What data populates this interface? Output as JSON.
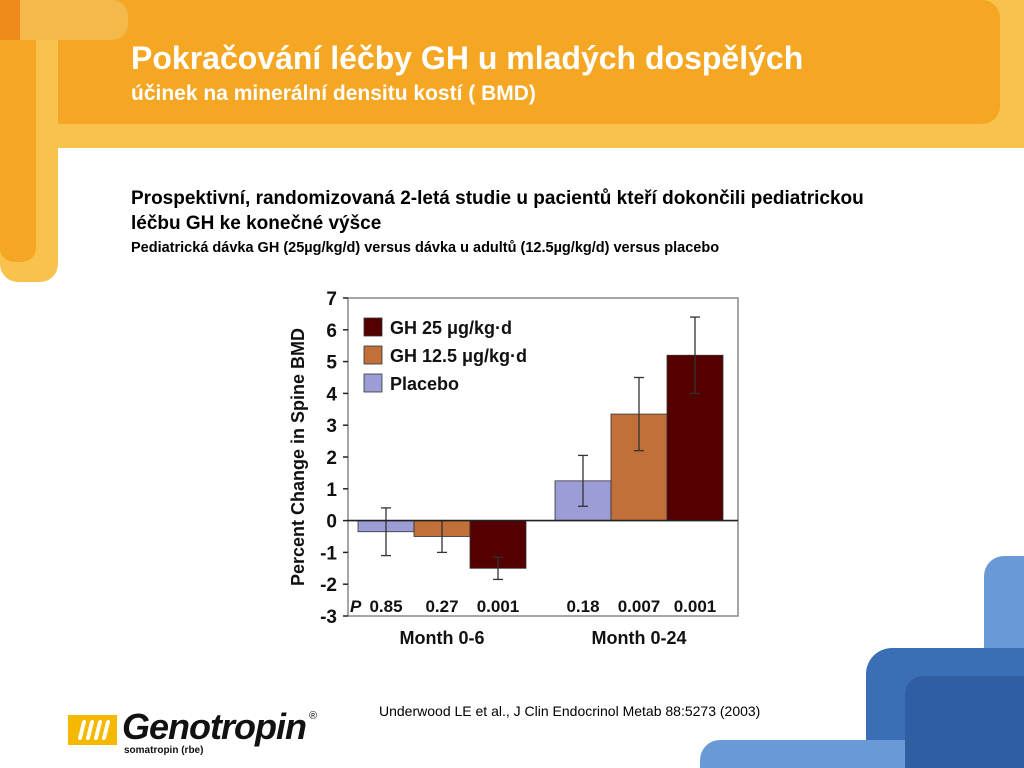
{
  "slide": {
    "title": "Pokračování léčby GH  u mladých dospělých",
    "subtitle": "účinek na minerální densitu kostí ( BMD)",
    "description": "Prospektivní, randomizovaná 2-letá studie u pacientů kteří dokončili pediatrickou léčbu GH ke konečné výšce",
    "doses": "Pediatrická dávka GH (25µg/kg/d) versus dávka u adultů (12.5µg/kg/d) versus placebo",
    "citation": "Underwood LE et al., J Clin Endocrinol Metab 88:5273 (2003)"
  },
  "logo": {
    "brand": "Genotropin",
    "registered": "®",
    "tagline": "somatropin (rbe)"
  },
  "colors": {
    "orange": "#f5a623",
    "orange_light": "#f9c24c",
    "blue": "#3a6fb5",
    "blue_light": "#6a9ad6",
    "gh25": "#550000",
    "gh12": "#c07038",
    "placebo": "#9c9cd6"
  },
  "chart_data": {
    "type": "bar",
    "ylabel": "Percent Change in Spine BMD",
    "ylim": [
      -3,
      7
    ],
    "yticks": [
      -3,
      -2,
      -1,
      0,
      1,
      2,
      3,
      4,
      5,
      6,
      7
    ],
    "categories": [
      "Month 0-6",
      "Month 0-24"
    ],
    "series": [
      {
        "name": "Placebo",
        "values": [
          -0.35,
          1.25
        ],
        "errors": [
          0.75,
          0.8
        ],
        "p_values": [
          "0.85",
          "0.18"
        ],
        "color": "#9c9cd6"
      },
      {
        "name": "GH 12.5 μg/kg·d",
        "values": [
          -0.5,
          3.35
        ],
        "errors": [
          0.5,
          1.15
        ],
        "p_values": [
          "0.27",
          "0.007"
        ],
        "color": "#c07038"
      },
      {
        "name": "GH 25 μg/kg·d",
        "values": [
          -1.5,
          5.2
        ],
        "errors": [
          0.35,
          1.2
        ],
        "p_values": [
          "0.001",
          "0.001"
        ],
        "color": "#550000"
      }
    ],
    "legend_order": [
      "GH 25 μg/kg·d",
      "GH 12.5 μg/kg·d",
      "Placebo"
    ],
    "legend_position": "top-left",
    "p_label": "P"
  }
}
